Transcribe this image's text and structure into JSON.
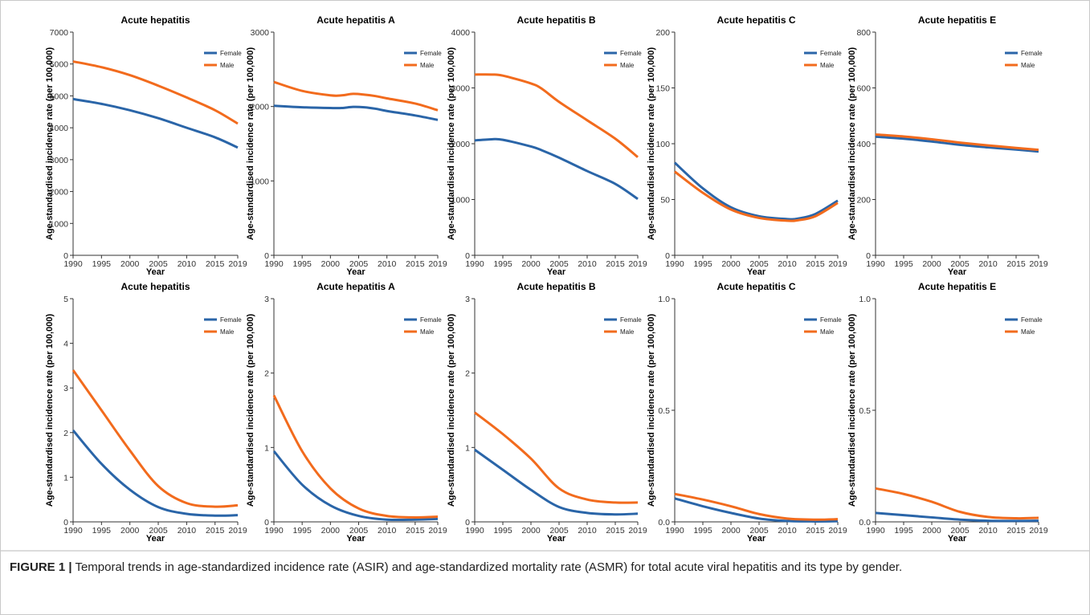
{
  "caption": {
    "label": "FIGURE 1 |",
    "text": " Temporal trends in age-standardized incidence rate (ASIR) and age-standardized mortality rate (ASMR) for total acute viral hepatitis and its type by gender."
  },
  "colors": {
    "female": "#2a65a8",
    "male": "#f26b1d",
    "axis": "#333333"
  },
  "chart_data": [
    {
      "type": "line",
      "title": "Acute hepatitis",
      "xlabel": "Year",
      "ylabel": "Age-standardised incidence rate (per 100,000)",
      "xlim": [
        1990,
        2019
      ],
      "ylim": [
        0,
        7000
      ],
      "xticks": [
        "1990",
        "1995",
        "2000",
        "2005",
        "2010",
        "2015",
        "2019"
      ],
      "yticks": [
        "0",
        "1000",
        "2000",
        "3000",
        "4000",
        "5000",
        "6000",
        "7000"
      ],
      "legend": "top-right",
      "x": [
        1990,
        1995,
        2000,
        2005,
        2010,
        2015,
        2019
      ],
      "series": [
        {
          "name": "Female",
          "values": [
            4900,
            4750,
            4550,
            4300,
            4000,
            3700,
            3380
          ]
        },
        {
          "name": "Male",
          "values": [
            6080,
            5900,
            5650,
            5320,
            4950,
            4550,
            4130
          ]
        }
      ]
    },
    {
      "type": "line",
      "title": "Acute hepatitis A",
      "xlabel": "Year",
      "ylabel": "Age-standardised incidence rate (per 100,000)",
      "xlim": [
        1990,
        2019
      ],
      "ylim": [
        0,
        3000
      ],
      "xticks": [
        "1990",
        "1995",
        "2000",
        "2005",
        "2010",
        "2015",
        "2019"
      ],
      "yticks": [
        "0",
        "1000",
        "2000",
        "3000"
      ],
      "legend": "top-right",
      "x": [
        1990,
        1995,
        2000,
        2002,
        2004,
        2006,
        2008,
        2010,
        2015,
        2019
      ],
      "series": [
        {
          "name": "Female",
          "values": [
            2010,
            1990,
            1980,
            1980,
            1995,
            1990,
            1970,
            1940,
            1880,
            1820
          ]
        },
        {
          "name": "Male",
          "values": [
            2330,
            2210,
            2150,
            2150,
            2170,
            2160,
            2140,
            2110,
            2040,
            1950
          ]
        }
      ]
    },
    {
      "type": "line",
      "title": "Acute hepatitis B",
      "xlabel": "Year",
      "ylabel": "Age-standardised incidence rate (per 100,000)",
      "xlim": [
        1990,
        2019
      ],
      "ylim": [
        0,
        4000
      ],
      "xticks": [
        "1990",
        "1995",
        "2000",
        "2005",
        "2010",
        "2015",
        "2019"
      ],
      "yticks": [
        "0",
        "1000",
        "2000",
        "3000",
        "4000"
      ],
      "legend": "top-right",
      "x": [
        1990,
        1993,
        1995,
        2000,
        2002,
        2005,
        2010,
        2015,
        2019
      ],
      "series": [
        {
          "name": "Female",
          "values": [
            2060,
            2080,
            2070,
            1950,
            1880,
            1750,
            1510,
            1280,
            1010
          ]
        },
        {
          "name": "Male",
          "values": [
            3240,
            3240,
            3220,
            3080,
            2980,
            2750,
            2420,
            2090,
            1760
          ]
        }
      ]
    },
    {
      "type": "line",
      "title": "Acute hepatitis C",
      "xlabel": "Year",
      "ylabel": "Age-standardised incidence rate (per 100,000)",
      "xlim": [
        1990,
        2019
      ],
      "ylim": [
        0,
        200
      ],
      "xticks": [
        "1990",
        "1995",
        "2000",
        "2005",
        "2010",
        "2015",
        "2019"
      ],
      "yticks": [
        "0",
        "50",
        "100",
        "150",
        "200"
      ],
      "legend": "top-right",
      "x": [
        1990,
        1995,
        2000,
        2005,
        2010,
        2012,
        2015,
        2019
      ],
      "series": [
        {
          "name": "Female",
          "values": [
            83,
            60,
            43,
            35,
            32.5,
            33,
            37,
            49
          ]
        },
        {
          "name": "Male",
          "values": [
            75,
            56,
            41,
            33.5,
            31,
            31.5,
            35,
            47
          ]
        }
      ]
    },
    {
      "type": "line",
      "title": "Acute hepatitis E",
      "xlabel": "Year",
      "ylabel": "Age-standardised incidence rate (per 100,000)",
      "xlim": [
        1990,
        2019
      ],
      "ylim": [
        0,
        800
      ],
      "xticks": [
        "1990",
        "1995",
        "2000",
        "2005",
        "2010",
        "2015",
        "2019"
      ],
      "yticks": [
        "0",
        "200",
        "400",
        "600",
        "800"
      ],
      "legend": "top-right",
      "x": [
        1990,
        1995,
        2000,
        2005,
        2010,
        2015,
        2019
      ],
      "series": [
        {
          "name": "Female",
          "values": [
            425,
            418,
            408,
            396,
            387,
            379,
            372
          ]
        },
        {
          "name": "Male",
          "values": [
            433,
            426,
            416,
            404,
            394,
            385,
            378
          ]
        }
      ]
    },
    {
      "type": "line",
      "title": "Acute hepatitis",
      "xlabel": "Year",
      "ylabel": "Age-standardised incidence rate (per 100,000)",
      "xlim": [
        1990,
        2019
      ],
      "ylim": [
        0,
        5
      ],
      "xticks": [
        "1990",
        "1995",
        "2000",
        "2005",
        "2010",
        "2015",
        "2019"
      ],
      "yticks": [
        "0",
        "1",
        "2",
        "3",
        "4",
        "5"
      ],
      "legend": "top-right",
      "x": [
        1990,
        1995,
        2000,
        2005,
        2010,
        2015,
        2019
      ],
      "series": [
        {
          "name": "Female",
          "values": [
            2.05,
            1.3,
            0.72,
            0.33,
            0.18,
            0.14,
            0.15
          ]
        },
        {
          "name": "Male",
          "values": [
            3.4,
            2.5,
            1.6,
            0.8,
            0.42,
            0.34,
            0.37
          ]
        }
      ]
    },
    {
      "type": "line",
      "title": "Acute hepatitis A",
      "xlabel": "Year",
      "ylabel": "Age-standardised incidence rate (per 100,000)",
      "xlim": [
        1990,
        2019
      ],
      "ylim": [
        0,
        3
      ],
      "xticks": [
        "1990",
        "1995",
        "2000",
        "2005",
        "2010",
        "2015",
        "2019"
      ],
      "yticks": [
        "0",
        "1",
        "2",
        "3"
      ],
      "legend": "top-right",
      "x": [
        1990,
        1995,
        2000,
        2005,
        2010,
        2015,
        2019
      ],
      "series": [
        {
          "name": "Female",
          "values": [
            0.95,
            0.5,
            0.22,
            0.08,
            0.03,
            0.03,
            0.04
          ]
        },
        {
          "name": "Male",
          "values": [
            1.7,
            0.95,
            0.45,
            0.18,
            0.08,
            0.06,
            0.07
          ]
        }
      ]
    },
    {
      "type": "line",
      "title": "Acute hepatitis B",
      "xlabel": "Year",
      "ylabel": "Age-standardised incidence rate (per 100,000)",
      "xlim": [
        1990,
        2019
      ],
      "ylim": [
        0,
        3
      ],
      "xticks": [
        "1990",
        "1995",
        "2000",
        "2005",
        "2010",
        "2015",
        "2019"
      ],
      "yticks": [
        "0",
        "1",
        "2",
        "3"
      ],
      "legend": "top-right",
      "x": [
        1990,
        1995,
        2000,
        2005,
        2010,
        2015,
        2019
      ],
      "series": [
        {
          "name": "Female",
          "values": [
            0.97,
            0.7,
            0.43,
            0.2,
            0.12,
            0.1,
            0.11
          ]
        },
        {
          "name": "Male",
          "values": [
            1.47,
            1.18,
            0.85,
            0.45,
            0.3,
            0.26,
            0.26
          ]
        }
      ]
    },
    {
      "type": "line",
      "title": "Acute hepatitis C",
      "xlabel": "Year",
      "ylabel": "Age-standardised incidence rate (per 100,000)",
      "xlim": [
        1990,
        2019
      ],
      "ylim": [
        0,
        1.0
      ],
      "xticks": [
        "1990",
        "1995",
        "2000",
        "2005",
        "2010",
        "2015",
        "2019"
      ],
      "yticks": [
        "0.0",
        "0.5",
        "1.0"
      ],
      "legend": "top-right",
      "x": [
        1990,
        1995,
        2000,
        2005,
        2010,
        2015,
        2019
      ],
      "series": [
        {
          "name": "Female",
          "values": [
            0.105,
            0.07,
            0.04,
            0.015,
            0.004,
            0.002,
            0.003
          ]
        },
        {
          "name": "Male",
          "values": [
            0.125,
            0.1,
            0.07,
            0.035,
            0.015,
            0.01,
            0.012
          ]
        }
      ]
    },
    {
      "type": "line",
      "title": "Acute hepatitis E",
      "xlabel": "Year",
      "ylabel": "Age-standardised incidence rate (per 100,000)",
      "xlim": [
        1990,
        2019
      ],
      "ylim": [
        0,
        1.0
      ],
      "xticks": [
        "1990",
        "1995",
        "2000",
        "2005",
        "2010",
        "2015",
        "2019"
      ],
      "yticks": [
        "0.0",
        "0.5",
        "1.0"
      ],
      "legend": "top-right",
      "x": [
        1990,
        1995,
        2000,
        2005,
        2010,
        2015,
        2019
      ],
      "series": [
        {
          "name": "Female",
          "values": [
            0.04,
            0.03,
            0.02,
            0.01,
            0.005,
            0.004,
            0.005
          ]
        },
        {
          "name": "Male",
          "values": [
            0.15,
            0.125,
            0.09,
            0.045,
            0.022,
            0.016,
            0.018
          ]
        }
      ]
    }
  ]
}
